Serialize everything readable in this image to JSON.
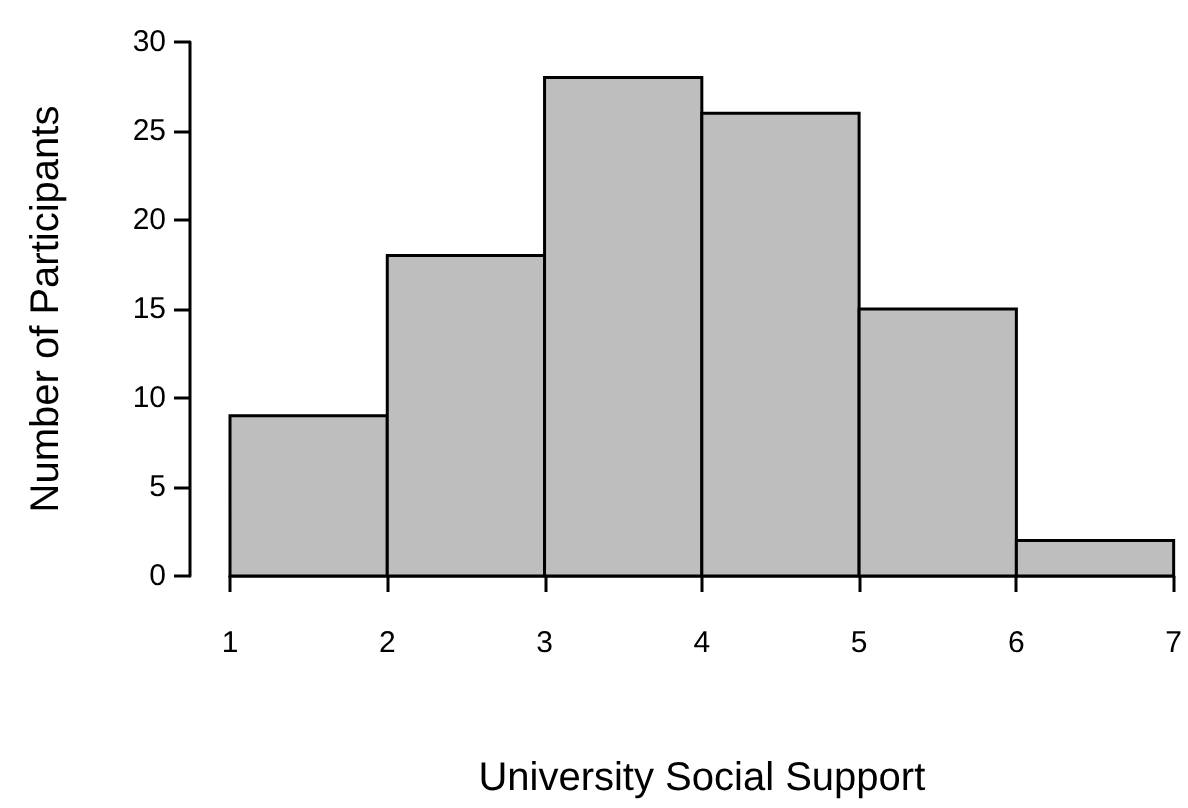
{
  "chart_data": {
    "type": "histogram",
    "xlabel": "University Social Support",
    "ylabel": "Number of Participants",
    "bins": [
      1,
      2,
      3,
      4,
      5,
      6,
      7
    ],
    "values": [
      9,
      18,
      28,
      26,
      15,
      2
    ],
    "color": "#bebebe",
    "xlim": [
      1,
      7
    ],
    "xticks": [
      1,
      2,
      3,
      4,
      5,
      6,
      7
    ],
    "ylim": [
      0,
      30
    ],
    "yticks": [
      0,
      5,
      10,
      15,
      20,
      25,
      30
    ]
  }
}
